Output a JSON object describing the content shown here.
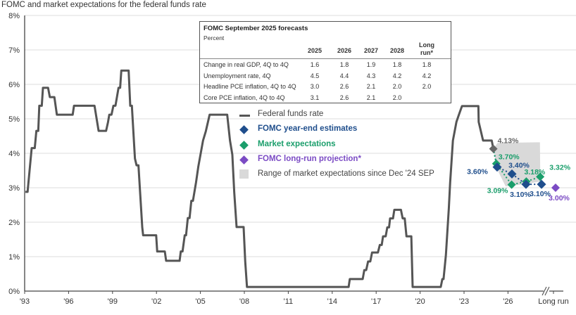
{
  "chart_data": {
    "type": "line",
    "title": "FOMC and market expectations for the federal funds rate",
    "y_ticks": [
      "0%",
      "1%",
      "2%",
      "3%",
      "4%",
      "5%",
      "6%",
      "7%",
      "8%"
    ],
    "ylim": [
      0,
      8
    ],
    "x_ticks": [
      "'93",
      "'96",
      "'99",
      "'02",
      "'05",
      "'08",
      "'11",
      "'14",
      "'17",
      "'20",
      "'23",
      "'26",
      "Long run"
    ],
    "x_tick_years": [
      1993,
      1996,
      1999,
      2002,
      2005,
      2008,
      2011,
      2014,
      2017,
      2020,
      2023,
      2026
    ],
    "xlim": [
      1993,
      2029
    ],
    "grid": true,
    "colors": {
      "line": "#555555",
      "fomc": "#1f4e8c",
      "market": "#1a9e6b",
      "longrun": "#7b4bc4",
      "range": "#d9d9d9",
      "current": "#666666"
    },
    "series": [
      {
        "name": "Federal funds rate",
        "points": [
          [
            1993.05,
            2.88
          ],
          [
            1993.2,
            2.88
          ],
          [
            1993.48,
            4.15
          ],
          [
            1993.69,
            4.15
          ],
          [
            1993.8,
            4.65
          ],
          [
            1993.93,
            4.65
          ],
          [
            1994.0,
            5.38
          ],
          [
            1994.17,
            5.38
          ],
          [
            1994.25,
            5.9
          ],
          [
            1994.6,
            5.9
          ],
          [
            1994.72,
            5.63
          ],
          [
            1995.03,
            5.63
          ],
          [
            1995.2,
            5.12
          ],
          [
            1996.28,
            5.12
          ],
          [
            1996.37,
            5.38
          ],
          [
            1997.77,
            5.38
          ],
          [
            1998.05,
            4.65
          ],
          [
            1998.56,
            4.65
          ],
          [
            1998.69,
            4.9
          ],
          [
            1998.78,
            5.12
          ],
          [
            1998.93,
            5.12
          ],
          [
            1999.06,
            5.38
          ],
          [
            1999.2,
            5.38
          ],
          [
            1999.41,
            5.9
          ],
          [
            1999.52,
            5.9
          ],
          [
            1999.6,
            6.4
          ],
          [
            2000.1,
            6.4
          ],
          [
            2000.21,
            5.38
          ],
          [
            2000.32,
            5.38
          ],
          [
            2000.53,
            3.85
          ],
          [
            2000.64,
            3.65
          ],
          [
            2000.77,
            3.65
          ],
          [
            2001.03,
            1.85
          ],
          [
            2001.09,
            1.62
          ],
          [
            2001.98,
            1.62
          ],
          [
            2002.05,
            1.15
          ],
          [
            2002.57,
            1.15
          ],
          [
            2002.66,
            0.88
          ],
          [
            2003.58,
            0.88
          ],
          [
            2003.66,
            1.15
          ],
          [
            2003.78,
            1.15
          ],
          [
            2003.93,
            1.62
          ],
          [
            2004.02,
            1.62
          ],
          [
            2004.14,
            2.12
          ],
          [
            2004.26,
            2.12
          ],
          [
            2004.38,
            2.62
          ],
          [
            2004.49,
            2.62
          ],
          [
            2004.7,
            3.15
          ],
          [
            2004.86,
            3.62
          ],
          [
            2005.18,
            4.37
          ],
          [
            2005.37,
            4.64
          ],
          [
            2005.63,
            5.12
          ],
          [
            2006.83,
            5.12
          ],
          [
            2007.02,
            4.37
          ],
          [
            2007.18,
            3.96
          ],
          [
            2007.31,
            2.87
          ],
          [
            2007.47,
            1.86
          ],
          [
            2007.95,
            1.86
          ],
          [
            2008.06,
            0.86
          ],
          [
            2008.18,
            0.12
          ],
          [
            2015.12,
            0.12
          ],
          [
            2015.2,
            0.35
          ],
          [
            2016.08,
            0.35
          ],
          [
            2016.19,
            0.61
          ],
          [
            2016.32,
            0.61
          ],
          [
            2016.45,
            0.86
          ],
          [
            2016.6,
            0.86
          ],
          [
            2016.72,
            1.12
          ],
          [
            2017.12,
            1.12
          ],
          [
            2017.25,
            1.34
          ],
          [
            2017.38,
            1.34
          ],
          [
            2017.47,
            1.59
          ],
          [
            2017.65,
            1.59
          ],
          [
            2017.76,
            1.85
          ],
          [
            2017.88,
            1.85
          ],
          [
            2017.95,
            2.11
          ],
          [
            2018.15,
            2.11
          ],
          [
            2018.24,
            2.36
          ],
          [
            2018.69,
            2.36
          ],
          [
            2018.81,
            2.11
          ],
          [
            2018.95,
            2.11
          ],
          [
            2019.07,
            1.59
          ],
          [
            2019.4,
            1.59
          ],
          [
            2019.49,
            0.12
          ],
          [
            2021.41,
            0.12
          ],
          [
            2021.52,
            0.35
          ],
          [
            2021.6,
            0.35
          ],
          [
            2021.76,
            1.04
          ],
          [
            2021.84,
            1.58
          ],
          [
            2021.96,
            2.39
          ],
          [
            2022.05,
            3.14
          ],
          [
            2022.24,
            4.37
          ],
          [
            2022.48,
            4.91
          ],
          [
            2022.65,
            5.12
          ],
          [
            2022.86,
            5.37
          ],
          [
            2023.98,
            5.37
          ],
          [
            2024.0,
            4.91
          ],
          [
            2024.3,
            4.37
          ],
          [
            2024.89,
            4.37
          ],
          [
            2025.0,
            4.13
          ]
        ]
      },
      {
        "name": "FOMC year-end estimates",
        "points": [
          [
            2025.26,
            3.6
          ],
          [
            2026.27,
            3.4
          ],
          [
            2027.23,
            3.1
          ],
          [
            2028.29,
            3.1
          ]
        ],
        "labels": [
          "3.60%",
          "3.40%",
          "3.10%",
          "3.10%"
        ]
      },
      {
        "name": "Market expectations",
        "points": [
          [
            2025.2,
            3.7
          ],
          [
            2026.25,
            3.09
          ],
          [
            2027.25,
            3.18
          ],
          [
            2028.2,
            3.32
          ]
        ],
        "labels": [
          "3.70%",
          "3.09%",
          "3.18%",
          "3.32%"
        ]
      },
      {
        "name": "FOMC long-run projection*",
        "x": "Long run",
        "value": 3.0,
        "label": "3.00%"
      },
      {
        "name": "Range of market expectations since Dec '24 SEP",
        "polygon": [
          [
            2025.05,
            4.16
          ],
          [
            2025.29,
            4.3
          ],
          [
            2028.18,
            4.32
          ],
          [
            2028.21,
            3.18
          ],
          [
            2026.9,
            3.09
          ],
          [
            2025.84,
            3.04
          ],
          [
            2025.36,
            3.45
          ],
          [
            2025.12,
            3.8
          ]
        ]
      }
    ],
    "current": {
      "point": [
        2025.0,
        4.13
      ],
      "label": "4.13%"
    }
  },
  "table": {
    "title": "FOMC September 2025 forecasts",
    "subtitle": "Percent",
    "columns": [
      "2025",
      "2026",
      "2027",
      "2028",
      "Long run*"
    ],
    "rows": [
      {
        "label": "Change in real GDP, 4Q to 4Q",
        "values": [
          "1.6",
          "1.8",
          "1.9",
          "1.8",
          "1.8"
        ]
      },
      {
        "label": "Unemployment rate, 4Q",
        "values": [
          "4.5",
          "4.4",
          "4.3",
          "4.2",
          "4.2"
        ]
      },
      {
        "label": "Headline PCE inflation, 4Q to 4Q",
        "values": [
          "3.0",
          "2.6",
          "2.1",
          "2.0",
          "2.0"
        ]
      },
      {
        "label": "Core PCE inflation, 4Q to 4Q",
        "values": [
          "3.1",
          "2.6",
          "2.1",
          "2.0",
          ""
        ]
      }
    ]
  },
  "legend": [
    {
      "label": "Federal funds rate",
      "icon": "line",
      "color": "#555555",
      "text_color": "#444444"
    },
    {
      "label": "FOMC year-end estimates",
      "icon": "diamond",
      "color": "#1f4e8c",
      "text_color": "#1f4e8c"
    },
    {
      "label": "Market expectations",
      "icon": "diamond",
      "color": "#1a9e6b",
      "text_color": "#1a9e6b"
    },
    {
      "label": "FOMC long-run projection*",
      "icon": "diamond",
      "color": "#7b4bc4",
      "text_color": "#7b4bc4"
    },
    {
      "label": "Range of market expectations since Dec '24 SEP",
      "icon": "square",
      "color": "#d9d9d9",
      "text_color": "#444444"
    }
  ]
}
